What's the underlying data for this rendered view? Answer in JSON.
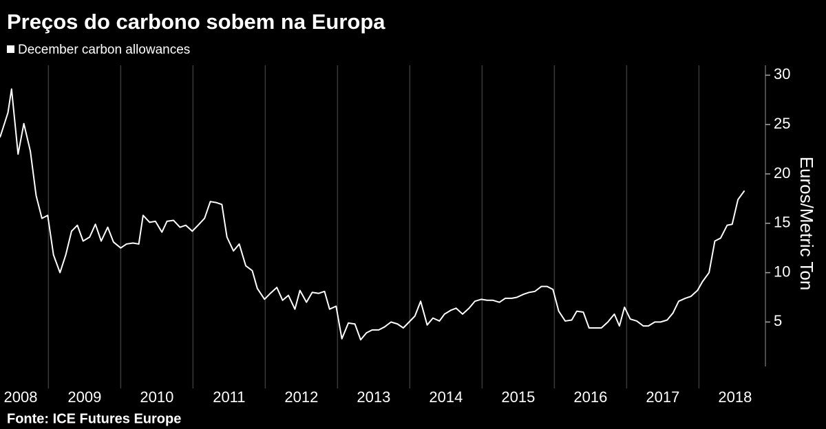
{
  "chart_data": {
    "type": "line",
    "title": "Preços do carbono sobem na Europa",
    "y_label": "Euros/Metric Ton",
    "source": "Fonte: ICE Futures Europe",
    "series": [
      {
        "name": "December carbon allowances",
        "color": "#ffffff",
        "x": [
          2008.33,
          2008.44,
          2008.49,
          2008.58,
          2008.66,
          2008.75,
          2008.83,
          2008.91,
          2008.99,
          2009.07,
          2009.16,
          2009.24,
          2009.32,
          2009.4,
          2009.48,
          2009.57,
          2009.65,
          2009.73,
          2009.82,
          2009.9,
          2010.0,
          2010.08,
          2010.17,
          2010.25,
          2010.31,
          2010.4,
          2010.48,
          2010.57,
          2010.64,
          2010.73,
          2010.82,
          2010.9,
          2010.99,
          2011.07,
          2011.16,
          2011.24,
          2011.32,
          2011.4,
          2011.47,
          2011.56,
          2011.64,
          2011.73,
          2011.82,
          2011.89,
          2011.99,
          2012.07,
          2012.16,
          2012.24,
          2012.32,
          2012.41,
          2012.48,
          2012.57,
          2012.65,
          2012.74,
          2012.82,
          2012.89,
          2012.98,
          2013.06,
          2013.15,
          2013.24,
          2013.32,
          2013.4,
          2013.48,
          2013.57,
          2013.65,
          2013.74,
          2013.83,
          2013.91,
          2013.99,
          2014.07,
          2014.15,
          2014.24,
          2014.32,
          2014.41,
          2014.48,
          2014.57,
          2014.64,
          2014.73,
          2014.82,
          2014.9,
          2014.99,
          2015.07,
          2015.15,
          2015.24,
          2015.32,
          2015.41,
          2015.48,
          2015.57,
          2015.65,
          2015.73,
          2015.82,
          2015.9,
          2015.98,
          2016.06,
          2016.15,
          2016.24,
          2016.31,
          2016.4,
          2016.48,
          2016.57,
          2016.65,
          2016.74,
          2016.83,
          2016.9,
          2016.97,
          2017.05,
          2017.14,
          2017.23,
          2017.3,
          2017.39,
          2017.47,
          2017.56,
          2017.64,
          2017.72,
          2017.81,
          2017.89,
          2017.98,
          2018.05,
          2018.14,
          2018.22,
          2018.3,
          2018.39,
          2018.46,
          2018.54,
          2018.63
        ],
        "values": [
          23.7,
          26.2,
          28.6,
          22.0,
          25.1,
          22.3,
          17.8,
          15.5,
          15.8,
          11.8,
          10.0,
          11.8,
          14.2,
          14.8,
          13.2,
          13.6,
          14.9,
          13.2,
          14.6,
          13.1,
          12.5,
          12.9,
          13.0,
          12.9,
          15.8,
          15.1,
          15.2,
          14.1,
          15.2,
          15.3,
          14.6,
          14.8,
          14.2,
          14.8,
          15.5,
          17.2,
          17.1,
          16.9,
          13.6,
          12.2,
          12.9,
          10.7,
          10.2,
          8.4,
          7.3,
          7.9,
          8.5,
          7.2,
          7.7,
          6.3,
          8.2,
          7.0,
          8.0,
          7.9,
          8.1,
          6.3,
          6.6,
          3.3,
          4.9,
          4.8,
          3.2,
          3.9,
          4.2,
          4.2,
          4.5,
          5.0,
          4.8,
          4.4,
          5.0,
          5.6,
          7.1,
          4.7,
          5.4,
          5.1,
          5.8,
          6.2,
          6.4,
          5.8,
          6.4,
          7.1,
          7.3,
          7.2,
          7.2,
          7.0,
          7.4,
          7.4,
          7.5,
          7.8,
          8.0,
          8.1,
          8.6,
          8.6,
          8.3,
          6.1,
          5.1,
          5.2,
          6.1,
          6.0,
          4.4,
          4.4,
          4.4,
          5.0,
          5.8,
          4.6,
          6.5,
          5.3,
          5.1,
          4.6,
          4.6,
          5.0,
          5.0,
          5.2,
          5.9,
          7.1,
          7.4,
          7.6,
          8.2,
          9.1,
          10.0,
          13.2,
          13.5,
          14.8,
          14.9,
          17.4,
          18.3
        ]
      }
    ],
    "xlim": [
      2008.33,
      2018.92
    ],
    "xticks": [
      {
        "value": 2008.5,
        "label": "2008"
      },
      {
        "value": 2009.5,
        "label": "2009"
      },
      {
        "value": 2010.5,
        "label": "2010"
      },
      {
        "value": 2011.5,
        "label": "2011"
      },
      {
        "value": 2012.5,
        "label": "2012"
      },
      {
        "value": 2013.5,
        "label": "2013"
      },
      {
        "value": 2014.5,
        "label": "2014"
      },
      {
        "value": 2015.5,
        "label": "2015"
      },
      {
        "value": 2016.5,
        "label": "2016"
      },
      {
        "value": 2017.5,
        "label": "2017"
      },
      {
        "value": 2018.5,
        "label": "2018"
      }
    ],
    "xgrid": [
      2009,
      2010,
      2011,
      2012,
      2013,
      2014,
      2015,
      2016,
      2017,
      2018
    ],
    "ylim": [
      0.5,
      31
    ],
    "yticks": [
      5,
      10,
      15,
      20,
      25,
      30
    ],
    "y_axis_side": "right",
    "grid": true
  }
}
